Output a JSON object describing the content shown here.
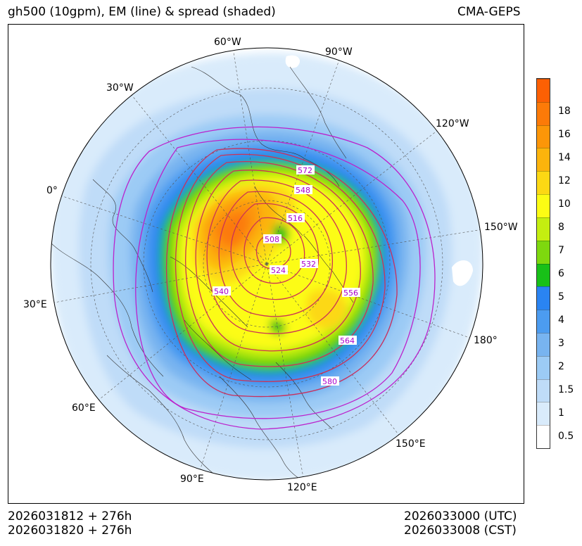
{
  "header": {
    "title": "gh500 (10gpm), EM (line) & spread (shaded)",
    "model": "CMA-GEPS"
  },
  "footer": {
    "init_utc": "2026031812 + 276h",
    "init_cst": "2026031820 + 276h",
    "valid_utc": "2026033000 (UTC)",
    "valid_cst": "2026033008 (CST)"
  },
  "map": {
    "projection": "north-polar-stereographic",
    "longitude_labels": [
      "60°W",
      "90°W",
      "30°W",
      "120°W",
      "0°",
      "150°W",
      "30°E",
      "180°",
      "60°E",
      "150°E",
      "90°E",
      "120°E"
    ],
    "contour_labels": [
      "572",
      "548",
      "516",
      "508",
      "524",
      "532",
      "540",
      "556",
      "564",
      "580"
    ],
    "colors": {
      "contour_inner": "#cc3355",
      "contour_outer": "#bb22cc",
      "coastline": "#333333"
    }
  },
  "colorbar": {
    "levels": [
      "0.5",
      "1",
      "1.5",
      "2",
      "3",
      "4",
      "5",
      "6",
      "7",
      "8",
      "10",
      "12",
      "14",
      "16",
      "18"
    ],
    "colors": [
      "#ffffff",
      "#d9ebfb",
      "#bfdcf8",
      "#9ccbf5",
      "#78b4f0",
      "#4c9cf0",
      "#2a84f2",
      "#18c018",
      "#7ed80e",
      "#c4ee10",
      "#fcfc14",
      "#fcd814",
      "#fcb40c",
      "#fc9608",
      "#fc7a08",
      "#fc6004"
    ]
  }
}
